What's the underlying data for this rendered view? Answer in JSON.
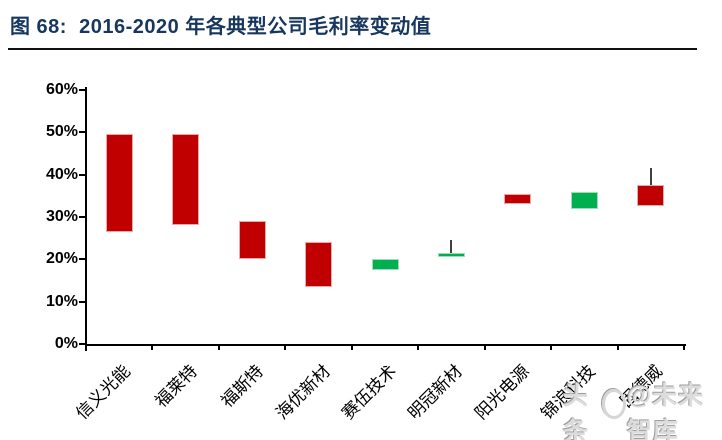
{
  "header": {
    "title": "图 68:  2016-2020 年各典型公司毛利率变动值"
  },
  "chart_data": {
    "type": "candlestick",
    "title": "2016-2020 年各典型公司毛利率变动值",
    "grid": false,
    "legend": false,
    "ylim": [
      0,
      60
    ],
    "y_tick_values": [
      60,
      50,
      40,
      30,
      20,
      10,
      0
    ],
    "y_tick_labels": [
      "60%",
      "50%",
      "40%",
      "30%",
      "20%",
      "10%",
      "0%"
    ],
    "categories": [
      "信义光能",
      "福莱特",
      "福斯特",
      "海优新材",
      "赛伍技术",
      "明冠新材",
      "阳光电源",
      "锦浪科技",
      "固德威"
    ],
    "series": [
      {
        "name": "信义光能",
        "open": 49.5,
        "high": 49.5,
        "low": 26.5,
        "close": 26.5,
        "direction": "down"
      },
      {
        "name": "福莱特",
        "open": 49.5,
        "high": 49.5,
        "low": 28,
        "close": 28,
        "direction": "down"
      },
      {
        "name": "福斯特",
        "open": 29,
        "high": 29,
        "low": 20,
        "close": 20,
        "direction": "down"
      },
      {
        "name": "海优新材",
        "open": 24,
        "high": 24,
        "low": 13.5,
        "close": 13.5,
        "direction": "down"
      },
      {
        "name": "赛伍技术",
        "open": 17.5,
        "high": 20,
        "low": 17.5,
        "close": 20,
        "direction": "up"
      },
      {
        "name": "明冠新材",
        "open": 20.5,
        "high": 24.5,
        "low": 20.5,
        "close": 21.5,
        "direction": "up"
      },
      {
        "name": "阳光电源",
        "open": 35.5,
        "high": 35.5,
        "low": 33,
        "close": 33,
        "direction": "down"
      },
      {
        "name": "锦浪科技",
        "open": 32,
        "high": 36,
        "low": 32,
        "close": 36,
        "direction": "up"
      },
      {
        "name": "固德威",
        "open": 37.5,
        "high": 41.5,
        "low": 32.5,
        "close": 32.5,
        "direction": "down"
      }
    ],
    "colors": {
      "down": "#C00000",
      "up": "#00B050",
      "wick": "#404040",
      "title": "#17375E"
    }
  },
  "watermark": {
    "prefix": "头条",
    "logo": "toutiao-logo-icon",
    "suffix": "@未来智库"
  }
}
